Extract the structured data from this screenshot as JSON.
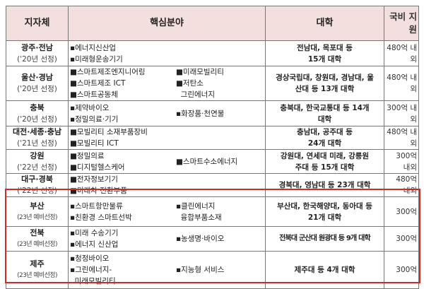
{
  "header": {
    "region": "지자체",
    "core": "핵심분야",
    "university": "대학",
    "funding": [
      "국비 지",
      "원"
    ]
  },
  "rows": [
    {
      "region": "광주·전남",
      "year": "('20년 선정)",
      "left": [
        "▪에너지신산업",
        "▪미래형운송기기"
      ],
      "right": [],
      "uni": [
        "전남대, 목포대 등",
        "15개 대학"
      ],
      "fund": [
        "480억 내",
        "외"
      ]
    },
    {
      "region": "울산·경남",
      "year": "('20년 선정)",
      "left": [
        "■스마트제조엔지니어링",
        "■스마트제조 ICT",
        "■스마트공동체"
      ],
      "right": [
        "■미래모빌리티",
        "■저탄소",
        "  그린에너지"
      ],
      "uni": [
        "경상국립대, 창원대, 경남대, 울",
        "산대 등 13개 대학"
      ],
      "fund": [
        "480억 내",
        "외"
      ]
    },
    {
      "region": "충북",
      "year": "('20년 선정)",
      "left": [
        "▪제약바이오",
        "▪정밀의료·기기"
      ],
      "right": [
        "▪화장품·천연물"
      ],
      "uni": [
        "충북대, 한국교통대 등 14개",
        "대학"
      ],
      "fund": [
        "300억 내",
        "외"
      ]
    },
    {
      "region": "대전·세종·충남",
      "year": "('21년 선정)",
      "left": [
        "■모빌리티 소재부품장비",
        "■모빌리티 ICT"
      ],
      "right": [],
      "uni": [
        "충남대, 공주대 등",
        "24개 대학"
      ],
      "fund": [
        "480억 내",
        "외"
      ]
    },
    {
      "region": "강원",
      "year": "('22년 선정)",
      "left": [
        "■정밀의료",
        "■디지털헬스케어"
      ],
      "right": [
        "■스마트수소에너지"
      ],
      "uni": [
        "강원대, 연세대 미래, 강릉원",
        "주대 등 15개 대학"
      ],
      "fund": [
        "300억",
        "내외"
      ]
    },
    {
      "region": "대구·경북",
      "year": "('22년 선정)",
      "left": [
        "■전자정보기기",
        "■미래차 전환부품"
      ],
      "right": [],
      "uni": [
        "경북대, 영남대 등 23개 대학"
      ],
      "fund": [
        "480억",
        "내외"
      ]
    },
    {
      "region": "부산",
      "year": "(23년 예비선정)",
      "left": [
        "▪스마트항만물류",
        "▪친환경 스마트선박"
      ],
      "right": [
        "▪클린에너지",
        "  융합부품소재"
      ],
      "uni": [
        "부산대, 한국해양대, 동아대 등",
        "21개 대학"
      ],
      "fund": [
        "300억"
      ]
    },
    {
      "region": "전북",
      "year": "(23년 예비선정)",
      "left": [
        "▪미래 수송기기",
        "▪에너지 신산업"
      ],
      "right": [
        "▪농생명·바이오"
      ],
      "uni": [
        "전북대 군산대 원광대 등 9개 대학"
      ],
      "fund": [
        "300억"
      ]
    },
    {
      "region": "제주",
      "year": "(23년 예비선정)",
      "left": [
        "▪청정바이오",
        "▪그린에너지-",
        "  미래모빌리티"
      ],
      "right": [
        "▪지능형 서비스"
      ],
      "uni": [
        "제주대 등 4개 대학"
      ],
      "fund": [
        "300억"
      ]
    }
  ],
  "colors": {
    "header_bg": "#f3dfdd",
    "highlight": "#d12a2a"
  }
}
